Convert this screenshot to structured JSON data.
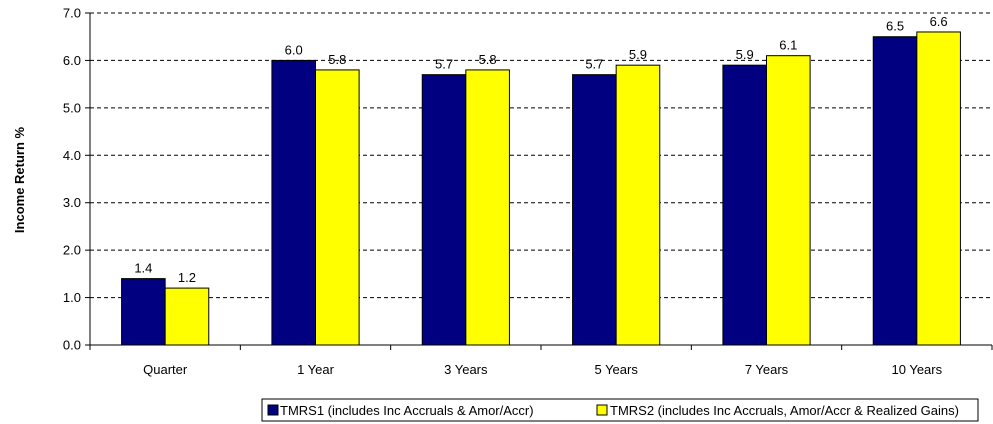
{
  "chart_data": {
    "type": "bar",
    "title": "",
    "xlabel": "",
    "ylabel": "Income Return %",
    "ylim": [
      0,
      7
    ],
    "ytick_step": 1,
    "ytick_labels": [
      "0.0",
      "1.0",
      "2.0",
      "3.0",
      "4.0",
      "5.0",
      "6.0",
      "7.0"
    ],
    "grid": "dashed horizontal",
    "legend_position": "bottom",
    "categories": [
      "Quarter",
      "1 Year",
      "3 Years",
      "5 Years",
      "7 Years",
      "10 Years"
    ],
    "series": [
      {
        "name": "TMRS1 (includes Inc Accruals & Amor/Accr)",
        "color": "#000080",
        "values": [
          1.4,
          6.0,
          5.7,
          5.7,
          5.9,
          6.5
        ],
        "labels": [
          "1.4",
          "6.0",
          "5.7",
          "5.7",
          "5.9",
          "6.5"
        ]
      },
      {
        "name": "TMRS2 (includes Inc Accruals, Amor/Accr & Realized Gains)",
        "color": "#FFFF00",
        "values": [
          1.2,
          5.8,
          5.8,
          5.9,
          6.1,
          6.6
        ],
        "labels": [
          "1.2",
          "5.8",
          "5.8",
          "5.9",
          "6.1",
          "6.6"
        ]
      }
    ]
  }
}
